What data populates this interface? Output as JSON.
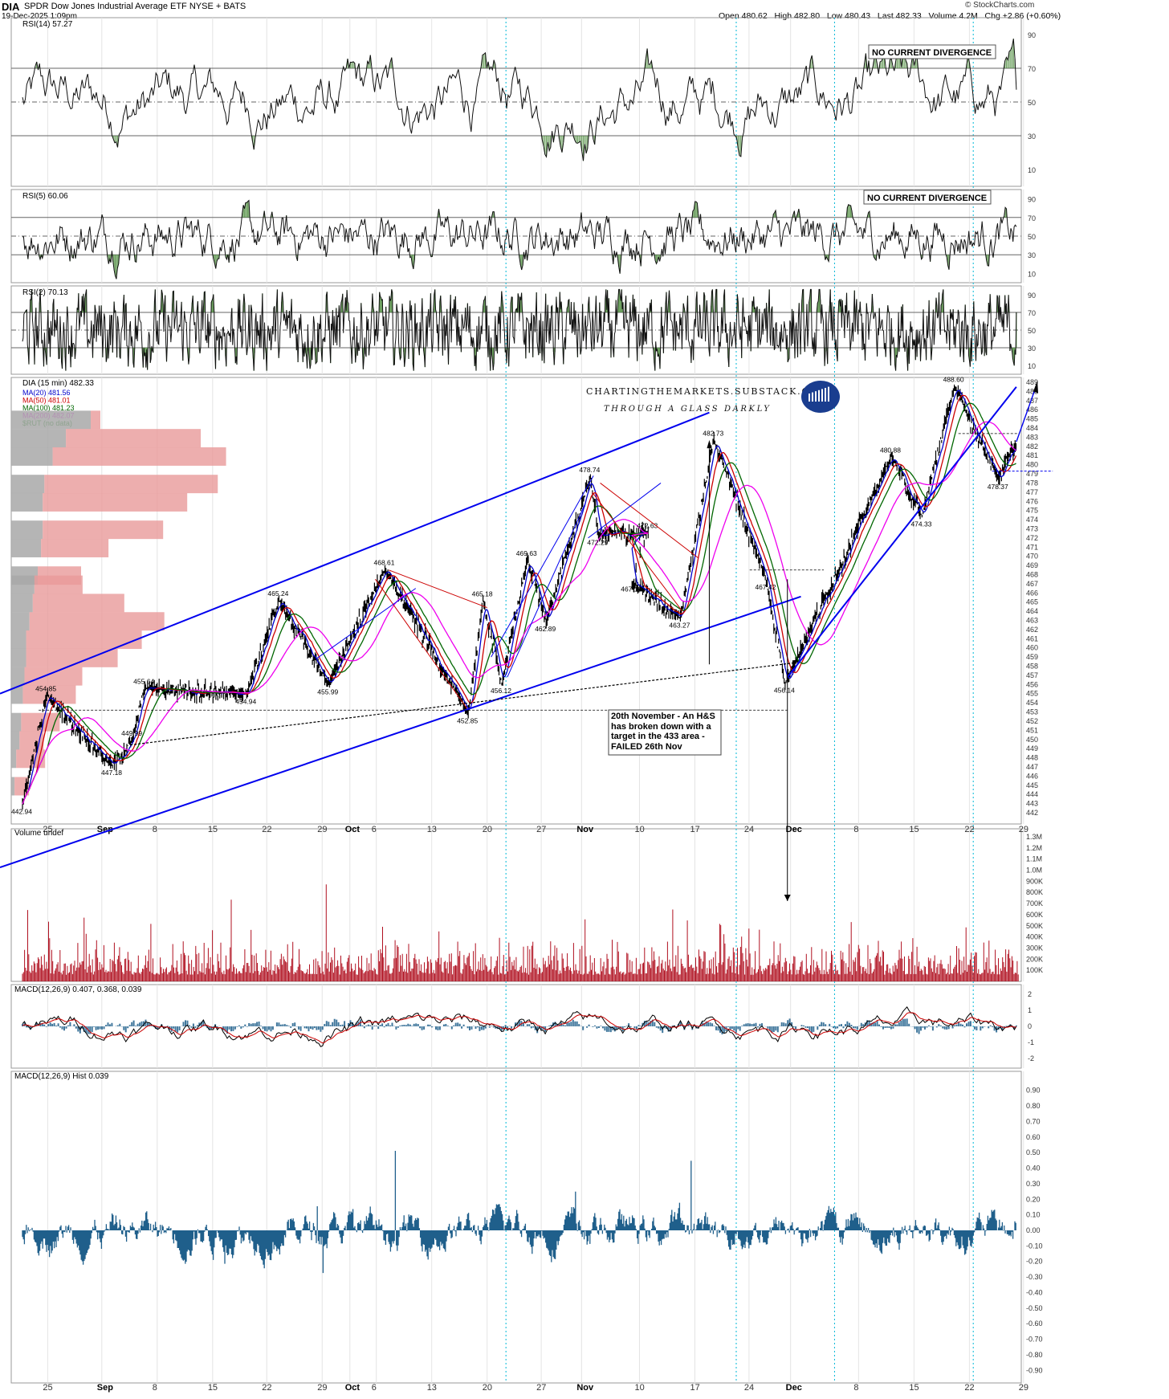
{
  "header": {
    "symbol": "DIA",
    "name": "SPDR Dow Jones Industrial Average ETF",
    "exchange": "NYSE + BATS",
    "date": "19-Dec-2025 1:09pm",
    "ohlc": "Open 480.62   High 482.80   Low 480.43   Last 482.33   Volume 4.2M   Chg +2.86 (+0.60%)",
    "source": "© StockCharts.com"
  },
  "colors": {
    "ma20": "#0000cc",
    "ma50": "#cc0000",
    "ma100": "#006600",
    "ma200": "#ee00ee",
    "trend": "#0000ee",
    "vbp_red": "#e89a9a",
    "vbp_gray": "#a8a8a8",
    "rsi_over": "#4a8a3a",
    "rsi_under": "#8a3a3a",
    "macd_hist": "#1f5f8b",
    "volume": "#b01020",
    "cyan_guide": "#00b8d8"
  },
  "chart_data": [
    {
      "type": "line",
      "panel": "rsi14",
      "title": "RSI(14) 57.27",
      "ylim": [
        0,
        100
      ],
      "yticks": [
        10,
        30,
        50,
        70,
        90
      ],
      "annotation": "NO CURRENT DIVERGENCE",
      "last": 57.27
    },
    {
      "type": "line",
      "panel": "rsi5",
      "title": "RSI(5) 60.06",
      "ylim": [
        0,
        100
      ],
      "yticks": [
        10,
        30,
        50,
        70,
        90
      ],
      "annotation": "NO CURRENT DIVERGENCE",
      "last": 60.06
    },
    {
      "type": "line",
      "panel": "rsi2",
      "title": "RSI(2) 70.13",
      "ylim": [
        0,
        100
      ],
      "yticks": [
        10,
        30,
        50,
        70,
        90
      ],
      "last": 70.13
    },
    {
      "type": "line",
      "panel": "price",
      "title": "DIA (15 min) 482.33",
      "legend": [
        {
          "name": "MA(20) 481.56",
          "color": "#0000cc"
        },
        {
          "name": "MA(50) 481.01",
          "color": "#cc0000"
        },
        {
          "name": "MA(100) 481.23",
          "color": "#006600"
        },
        {
          "name": "MA(200) 482.07",
          "color": "#ee00ee"
        },
        {
          "name": "$RUT (no data)",
          "color": "#008800"
        }
      ],
      "ylim": [
        442,
        489
      ],
      "yticks": [
        442,
        443,
        444,
        445,
        446,
        447,
        448,
        449,
        450,
        451,
        452,
        453,
        454,
        455,
        456,
        457,
        458,
        459,
        460,
        461,
        462,
        463,
        464,
        465,
        466,
        467,
        468,
        469,
        470,
        471,
        472,
        473,
        474,
        475,
        476,
        477,
        478,
        479,
        480,
        481,
        482,
        483,
        484,
        485,
        486,
        487,
        488,
        489
      ],
      "xticks": [
        "25",
        "Sep",
        "8",
        "15",
        "22",
        "29",
        "Oct",
        "6",
        "13",
        "20",
        "27",
        "Nov",
        "10",
        "17",
        "24",
        "Dec",
        "8",
        "15",
        "22",
        "29"
      ],
      "pivots": [
        {
          "x": 0.0,
          "y": 442.94,
          "label": "442.94"
        },
        {
          "x": 1.8,
          "y": 454.85,
          "label": "454.85"
        },
        {
          "x": 6.7,
          "y": 447.18,
          "label": "447.18"
        },
        {
          "x": 8.2,
          "y": 449.99,
          "label": "449.99"
        },
        {
          "x": 9.1,
          "y": 455.64,
          "label": "455.64"
        },
        {
          "x": 16.7,
          "y": 454.94,
          "label": "454.94"
        },
        {
          "x": 19.1,
          "y": 465.24,
          "label": "465.24"
        },
        {
          "x": 22.8,
          "y": 455.99,
          "label": "455.99"
        },
        {
          "x": 27.0,
          "y": 468.61,
          "label": "468.61"
        },
        {
          "x": 33.2,
          "y": 452.85,
          "label": "452.85"
        },
        {
          "x": 34.3,
          "y": 465.18,
          "label": "465.18"
        },
        {
          "x": 35.7,
          "y": 456.12,
          "label": "456.12"
        },
        {
          "x": 37.6,
          "y": 469.63,
          "label": "469.63"
        },
        {
          "x": 39.0,
          "y": 462.89,
          "label": "462.89"
        },
        {
          "x": 42.3,
          "y": 478.74,
          "label": "478.74"
        },
        {
          "x": 42.9,
          "y": 472.29,
          "label": "472.29"
        },
        {
          "x": 46.6,
          "y": 472.63,
          "label": "472.63"
        },
        {
          "x": 45.4,
          "y": 467.19,
          "label": "467.19"
        },
        {
          "x": 49.0,
          "y": 463.27,
          "label": "463.27"
        },
        {
          "x": 51.5,
          "y": 482.73,
          "label": "482.73"
        },
        {
          "x": 55.4,
          "y": 467.42,
          "label": "467.42"
        },
        {
          "x": 56.8,
          "y": 456.14,
          "label": "456.14"
        },
        {
          "x": 64.7,
          "y": 480.88,
          "label": "480.88"
        },
        {
          "x": 67.0,
          "y": 474.33,
          "label": "474.33"
        },
        {
          "x": 69.4,
          "y": 488.6,
          "label": "488.60"
        },
        {
          "x": 72.7,
          "y": 478.37,
          "label": "478.37"
        },
        {
          "x": 74.0,
          "y": 482.33,
          "label": ""
        }
      ],
      "annotation": "20th November - An H&S has broken down with a target in the 433 area - FAILED 26th Nov",
      "watermark_line1": "CHARTINGTHEMARKETS.SUBSTACK.COM",
      "watermark_line2": "THROUGH A GLASS DARKLY",
      "last": 482.33
    },
    {
      "type": "bar",
      "panel": "volume",
      "title": "Volume undef",
      "yticks": [
        "100K",
        "200K",
        "300K",
        "400K",
        "500K",
        "600K",
        "700K",
        "800K",
        "900K",
        "1.0M",
        "1.1M",
        "1.2M",
        "1.3M"
      ],
      "ylim": [
        0,
        1300000
      ]
    },
    {
      "type": "line",
      "panel": "macd",
      "title": "MACD(12,26,9) 0.407, 0.368, 0.039",
      "values": {
        "macd": 0.407,
        "signal": 0.368,
        "hist": 0.039
      },
      "ylim": [
        -2.5,
        2.5
      ],
      "yticks": [
        -2,
        -1,
        0,
        1,
        2
      ]
    },
    {
      "type": "bar",
      "panel": "macd_hist",
      "title": "MACD(12,26,9) Hist 0.039",
      "ylim": [
        -0.9,
        1.0
      ],
      "yticks": [
        "0.90",
        "0.80",
        "0.70",
        "0.60",
        "0.50",
        "0.40",
        "0.30",
        "0.20",
        "0.10",
        "0.00",
        "-0.10",
        "-0.20",
        "-0.30",
        "-0.40",
        "-0.50",
        "-0.60",
        "-0.70",
        "-0.80",
        "-0.90"
      ],
      "xticks": [
        "25",
        "Sep",
        "8",
        "15",
        "22",
        "29",
        "Oct",
        "6",
        "13",
        "20",
        "27",
        "Nov",
        "10",
        "17",
        "24",
        "Dec",
        "8",
        "15",
        "22",
        "29"
      ]
    }
  ]
}
